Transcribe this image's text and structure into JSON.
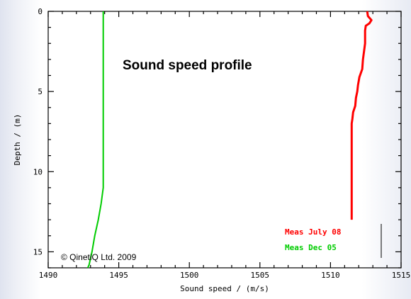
{
  "chart_data": {
    "type": "line",
    "title": "Sound speed profile",
    "xlabel": "Sound speed / (m/s)",
    "ylabel": "Depth / (m)",
    "xlim": [
      1490,
      1515
    ],
    "ylim": [
      0,
      16
    ],
    "y_inverted": true,
    "x_ticks": [
      "1490",
      "1495",
      "1500",
      "1505",
      "1510",
      "1515"
    ],
    "y_ticks": [
      "0",
      "5",
      "10",
      "15"
    ],
    "grid": false,
    "legend_position": "bottom-right",
    "copyright": "© QinetiQ Ltd. 2009",
    "series": [
      {
        "name": "Meas July 08",
        "color": "#ff0000",
        "points": [
          [
            1512.6,
            0.0
          ],
          [
            1512.65,
            0.3
          ],
          [
            1512.9,
            0.55
          ],
          [
            1512.75,
            0.75
          ],
          [
            1512.5,
            0.9
          ],
          [
            1512.45,
            1.2
          ],
          [
            1512.45,
            2.0
          ],
          [
            1512.3,
            3.0
          ],
          [
            1512.25,
            3.6
          ],
          [
            1512.05,
            4.1
          ],
          [
            1511.95,
            4.6
          ],
          [
            1511.9,
            5.0
          ],
          [
            1511.8,
            5.4
          ],
          [
            1511.75,
            5.9
          ],
          [
            1511.6,
            6.3
          ],
          [
            1511.55,
            6.7
          ],
          [
            1511.5,
            7.0
          ],
          [
            1511.5,
            8.0
          ],
          [
            1511.5,
            10.0
          ],
          [
            1511.5,
            12.0
          ],
          [
            1511.5,
            13.0
          ]
        ]
      },
      {
        "name": "Meas Dec 05",
        "color": "#00cc00",
        "points": [
          [
            1493.9,
            0.0
          ],
          [
            1493.9,
            5.0
          ],
          [
            1493.9,
            10.0
          ],
          [
            1493.9,
            11.0
          ],
          [
            1493.75,
            12.0
          ],
          [
            1493.55,
            13.0
          ],
          [
            1493.3,
            14.0
          ],
          [
            1493.1,
            15.0
          ],
          [
            1492.9,
            15.8
          ],
          [
            1492.8,
            16.0
          ]
        ]
      }
    ]
  }
}
